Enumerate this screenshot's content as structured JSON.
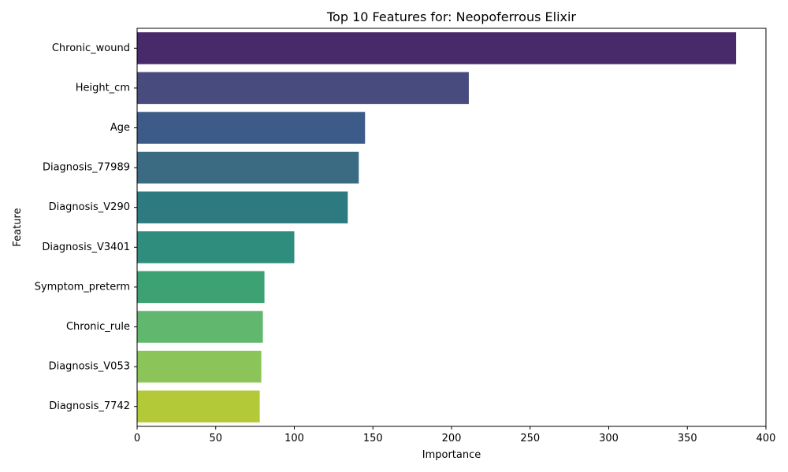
{
  "chart_data": {
    "type": "bar",
    "orientation": "horizontal",
    "title": "Top 10 Features for: Neopoferrous Elixir",
    "xlabel": "Importance",
    "ylabel": "Feature",
    "xlim": [
      0,
      400
    ],
    "xticks": [
      0,
      50,
      100,
      150,
      200,
      250,
      300,
      350,
      400
    ],
    "grid": false,
    "categories": [
      "Chronic_wound",
      "Height_cm",
      "Age",
      "Diagnosis_77989",
      "Diagnosis_V290",
      "Diagnosis_V3401",
      "Symptom_preterm",
      "Chronic_rule",
      "Diagnosis_V053",
      "Diagnosis_7742"
    ],
    "values": [
      381,
      211,
      145,
      141,
      134,
      100,
      81,
      80,
      79,
      78
    ],
    "colors": [
      "#482a6a",
      "#484b7d",
      "#3c5b88",
      "#3a6b82",
      "#2d7a80",
      "#2e8d7d",
      "#3da273",
      "#62b76f",
      "#8bc55a",
      "#b3c937"
    ]
  }
}
